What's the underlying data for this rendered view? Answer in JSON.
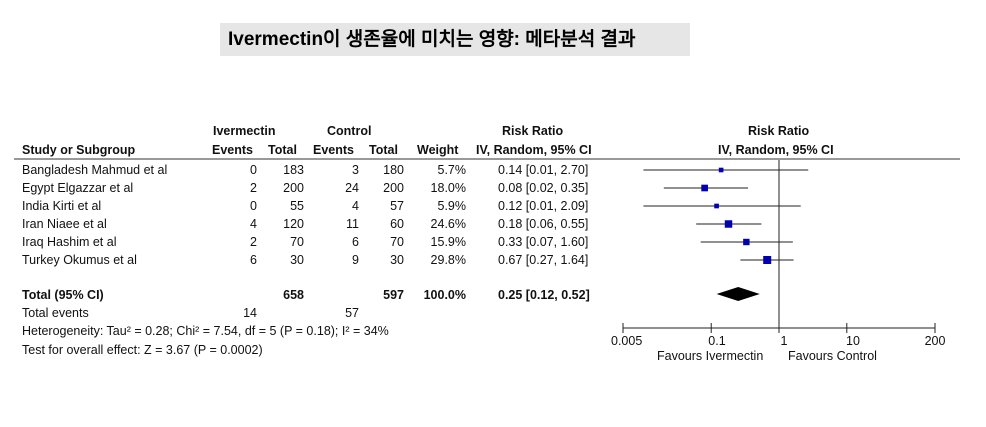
{
  "title": "Ivermectin이 생존율에 미치는 영향: 메타분석 결과",
  "headers": {
    "study": "Study or Subgroup",
    "group1": "Ivermectin",
    "group2": "Control",
    "events": "Events",
    "total": "Total",
    "weight": "Weight",
    "rr": "Risk Ratio",
    "rr_method": "IV, Random, 95% CI",
    "plot_rr": "Risk Ratio",
    "plot_rr_method": "IV, Random, 95% CI"
  },
  "rows": [
    {
      "study": "Bangladesh Mahmud et al",
      "e1": "0",
      "t1": "183",
      "e2": "3",
      "t2": "180",
      "weight": "5.7%",
      "rr": "0.14 [0.01, 2.70]"
    },
    {
      "study": "Egypt Elgazzar et al",
      "e1": "2",
      "t1": "200",
      "e2": "24",
      "t2": "200",
      "weight": "18.0%",
      "rr": "0.08 [0.02, 0.35]"
    },
    {
      "study": "India Kirti et al",
      "e1": "0",
      "t1": "55",
      "e2": "4",
      "t2": "57",
      "weight": "5.9%",
      "rr": "0.12 [0.01, 2.09]"
    },
    {
      "study": "Iran Niaee et al",
      "e1": "4",
      "t1": "120",
      "e2": "11",
      "t2": "60",
      "weight": "24.6%",
      "rr": "0.18 [0.06, 0.55]"
    },
    {
      "study": "Iraq Hashim et al",
      "e1": "2",
      "t1": "70",
      "e2": "6",
      "t2": "70",
      "weight": "15.9%",
      "rr": "0.33 [0.07, 1.60]"
    },
    {
      "study": "Turkey Okumus et al",
      "e1": "6",
      "t1": "30",
      "e2": "9",
      "t2": "30",
      "weight": "29.8%",
      "rr": "0.67 [0.27, 1.64]"
    }
  ],
  "total": {
    "label": "Total (95% CI)",
    "t1": "658",
    "t2": "597",
    "weight": "100.0%",
    "rr": "0.25 [0.12, 0.52]"
  },
  "total_events": {
    "label": "Total events",
    "e1": "14",
    "e2": "57"
  },
  "heterogeneity": "Heterogeneity: Tau² = 0.28; Chi² = 7.54, df = 5 (P = 0.18); I² = 34%",
  "overall_effect": "Test for overall effect: Z = 3.67 (P = 0.0002)",
  "chart_data": {
    "type": "forest",
    "xscale": "log",
    "xlim": [
      0.005,
      200
    ],
    "ticks": [
      0.005,
      0.1,
      1,
      10,
      200
    ],
    "tick_labels": [
      "0.005",
      "0.1",
      "1",
      "10",
      "200"
    ],
    "xlabel_left": "Favours Ivermectin",
    "xlabel_right": "Favours Control",
    "marker_color": "#0000b0",
    "studies": [
      {
        "est": 0.14,
        "lo": 0.01,
        "hi": 2.7,
        "weight": 5.7
      },
      {
        "est": 0.08,
        "lo": 0.02,
        "hi": 0.35,
        "weight": 18.0
      },
      {
        "est": 0.12,
        "lo": 0.01,
        "hi": 2.09,
        "weight": 5.9
      },
      {
        "est": 0.18,
        "lo": 0.06,
        "hi": 0.55,
        "weight": 24.6
      },
      {
        "est": 0.33,
        "lo": 0.07,
        "hi": 1.6,
        "weight": 15.9
      },
      {
        "est": 0.67,
        "lo": 0.27,
        "hi": 1.64,
        "weight": 29.8
      }
    ],
    "pooled": {
      "est": 0.25,
      "lo": 0.12,
      "hi": 0.52
    }
  }
}
